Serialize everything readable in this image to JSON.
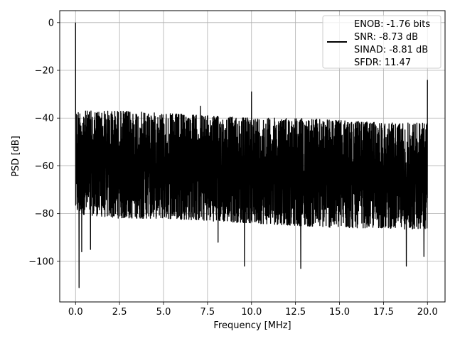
{
  "chart_data": {
    "type": "line",
    "xlabel": "Frequency [MHz]",
    "ylabel": "PSD [dB]",
    "xlim": [
      -0.9,
      21.0
    ],
    "ylim": [
      -117,
      5
    ],
    "xticks": [
      0.0,
      2.5,
      5.0,
      7.5,
      10.0,
      12.5,
      15.0,
      17.5,
      20.0
    ],
    "xtick_labels": [
      "0.0",
      "2.5",
      "5.0",
      "7.5",
      "10.0",
      "12.5",
      "15.0",
      "17.5",
      "20.0"
    ],
    "yticks": [
      0,
      -20,
      -40,
      -60,
      -80,
      -100
    ],
    "ytick_labels": [
      "0",
      "−20",
      "−40",
      "−60",
      "−80",
      "−100"
    ],
    "grid": true,
    "legend_position": "top-right",
    "line_color": "#000000",
    "series": [
      {
        "name": "ENOB: -1.76 bits\nSNR: -8.73 dB\nSINAD: -8.81 dB\nSFDR: 11.47",
        "noise_envelope": {
          "x": [
            0.0,
            2.5,
            5.0,
            7.5,
            10.0,
            12.5,
            15.0,
            17.5,
            20.0
          ],
          "upper": [
            -37,
            -37,
            -38,
            -39,
            -40,
            -40,
            -41,
            -42,
            -42
          ],
          "lower": [
            -80,
            -82,
            -82,
            -83,
            -84,
            -85,
            -86,
            -86,
            -87
          ]
        },
        "spurs": [
          {
            "x": 0.0,
            "y": 0
          },
          {
            "x": 10.0,
            "y": -29
          },
          {
            "x": 20.0,
            "y": -24
          },
          {
            "x": 7.1,
            "y": -35
          }
        ],
        "dips": [
          {
            "x": 0.2,
            "y": -111
          },
          {
            "x": 0.35,
            "y": -96
          },
          {
            "x": 0.85,
            "y": -95
          },
          {
            "x": 8.1,
            "y": -92
          },
          {
            "x": 9.6,
            "y": -102
          },
          {
            "x": 12.8,
            "y": -103
          },
          {
            "x": 18.8,
            "y": -102
          },
          {
            "x": 19.8,
            "y": -98
          }
        ]
      }
    ]
  }
}
